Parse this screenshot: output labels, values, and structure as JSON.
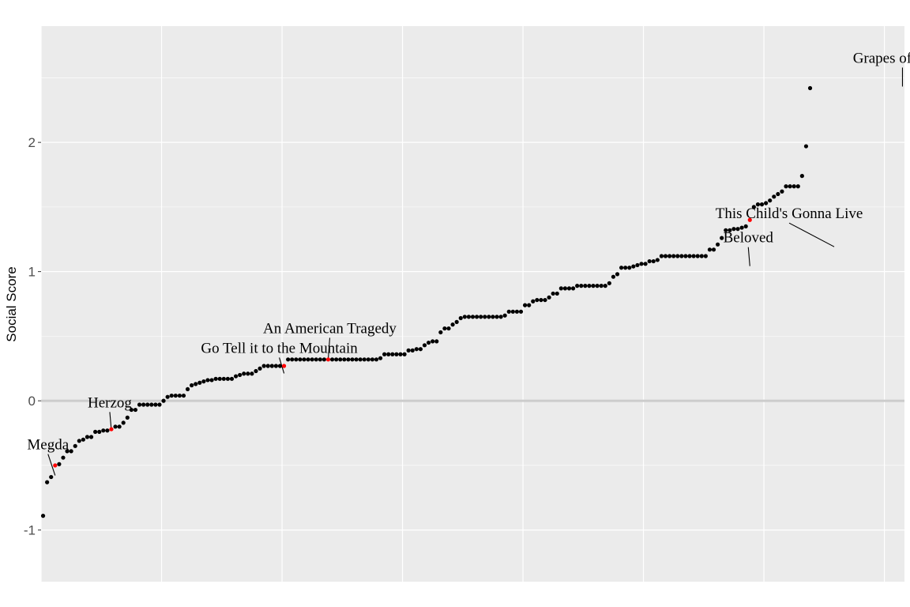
{
  "chart_data": {
    "type": "scatter",
    "title": "",
    "xlabel": "",
    "ylabel": "Social Score",
    "xlim": [
      0.5,
      215.5
    ],
    "ylim": [
      -1.4,
      2.9
    ],
    "y_ticks": [
      -1,
      0,
      1,
      2
    ],
    "y_tick_labels": [
      "-1",
      "0",
      "1",
      "2"
    ],
    "x_gridlines_data": [
      0.5,
      30.5,
      60.5,
      90.5,
      120.5,
      150.5,
      180.5,
      210.5
    ],
    "x_tick_labels_shown": false,
    "grid": true,
    "reference_line_y": 0,
    "colors": {
      "panel_background": "#ebebeb",
      "gridline": "#ffffff",
      "reference_line": "#cccccc",
      "point_default": "#000000",
      "point_highlight": "#ff0000"
    },
    "values": [
      -0.89,
      -0.63,
      -0.59,
      -0.5,
      -0.49,
      -0.44,
      -0.39,
      -0.39,
      -0.35,
      -0.31,
      -0.3,
      -0.28,
      -0.28,
      -0.24,
      -0.24,
      -0.23,
      -0.23,
      -0.22,
      -0.2,
      -0.2,
      -0.17,
      -0.13,
      -0.07,
      -0.07,
      -0.03,
      -0.03,
      -0.03,
      -0.03,
      -0.03,
      -0.03,
      0.0,
      0.03,
      0.04,
      0.04,
      0.04,
      0.04,
      0.09,
      0.12,
      0.13,
      0.14,
      0.15,
      0.16,
      0.16,
      0.17,
      0.17,
      0.17,
      0.17,
      0.17,
      0.19,
      0.2,
      0.21,
      0.21,
      0.21,
      0.23,
      0.25,
      0.27,
      0.27,
      0.27,
      0.27,
      0.27,
      0.27,
      0.32,
      0.32,
      0.32,
      0.32,
      0.32,
      0.32,
      0.32,
      0.32,
      0.32,
      0.32,
      0.32,
      0.32,
      0.32,
      0.32,
      0.32,
      0.32,
      0.32,
      0.32,
      0.32,
      0.32,
      0.32,
      0.32,
      0.32,
      0.33,
      0.36,
      0.36,
      0.36,
      0.36,
      0.36,
      0.36,
      0.39,
      0.39,
      0.4,
      0.4,
      0.43,
      0.45,
      0.46,
      0.46,
      0.53,
      0.56,
      0.56,
      0.59,
      0.61,
      0.64,
      0.65,
      0.65,
      0.65,
      0.65,
      0.65,
      0.65,
      0.65,
      0.65,
      0.65,
      0.65,
      0.66,
      0.69,
      0.69,
      0.69,
      0.69,
      0.74,
      0.74,
      0.77,
      0.78,
      0.78,
      0.78,
      0.8,
      0.83,
      0.83,
      0.87,
      0.87,
      0.87,
      0.87,
      0.89,
      0.89,
      0.89,
      0.89,
      0.89,
      0.89,
      0.89,
      0.89,
      0.91,
      0.96,
      0.98,
      1.03,
      1.03,
      1.03,
      1.04,
      1.05,
      1.06,
      1.06,
      1.08,
      1.08,
      1.09,
      1.12,
      1.12,
      1.12,
      1.12,
      1.12,
      1.12,
      1.12,
      1.12,
      1.12,
      1.12,
      1.12,
      1.12,
      1.17,
      1.17,
      1.21,
      1.26,
      1.32,
      1.32,
      1.33,
      1.33,
      1.34,
      1.35,
      1.4,
      1.5,
      1.52,
      1.52,
      1.53,
      1.55,
      1.58,
      1.6,
      1.62,
      1.66,
      1.66,
      1.66,
      1.66,
      1.74,
      1.97,
      2.42
    ],
    "highlighted": [
      {
        "index": 3,
        "label": "Megda",
        "value": -0.59
      },
      {
        "index": 17,
        "label": "Herzog",
        "value": -0.24
      },
      {
        "index": 60,
        "label": "Go Tell it to the Mountain",
        "value": 0.2
      },
      {
        "index": 71,
        "label": "An American Tragedy",
        "value": 0.31
      },
      {
        "index": 176,
        "label": "Beloved",
        "value": 1.03
      },
      {
        "index": 197,
        "label": "This Child's Gonna Live",
        "value": 1.18
      },
      {
        "index": 214,
        "label": "Grapes of Wrath",
        "value": 2.42
      }
    ]
  }
}
